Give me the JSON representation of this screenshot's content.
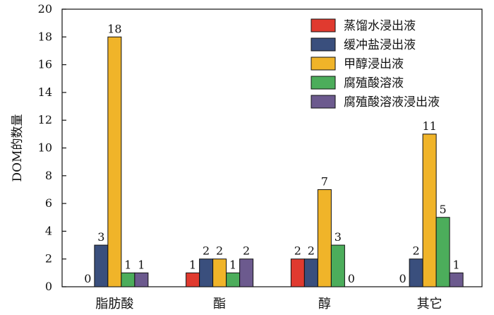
{
  "chart_data": {
    "type": "bar",
    "categories": [
      "脂肪酸",
      "酯",
      "醇",
      "其它"
    ],
    "series": [
      {
        "name": "蒸馏水浸出液",
        "color": "#e03a2f",
        "values": [
          0,
          1,
          2,
          0
        ]
      },
      {
        "name": "缓冲盐浸出液",
        "color": "#3a4f7d",
        "values": [
          3,
          2,
          2,
          2
        ]
      },
      {
        "name": "甲醇浸出液",
        "color": "#f0b429",
        "values": [
          18,
          2,
          7,
          11
        ]
      },
      {
        "name": "腐殖酸溶液",
        "color": "#4cad5b",
        "values": [
          1,
          1,
          3,
          5
        ]
      },
      {
        "name": "腐殖酸溶液浸出液",
        "color": "#6c5a8e",
        "values": [
          1,
          2,
          0,
          1
        ]
      }
    ],
    "ylabel": "DOM的数量",
    "xlabel": "",
    "ylim": [
      0,
      20
    ],
    "yticks": [
      0,
      2,
      4,
      6,
      8,
      10,
      12,
      14,
      16,
      18,
      20
    ],
    "legend_position": "top-right",
    "grid": false
  }
}
